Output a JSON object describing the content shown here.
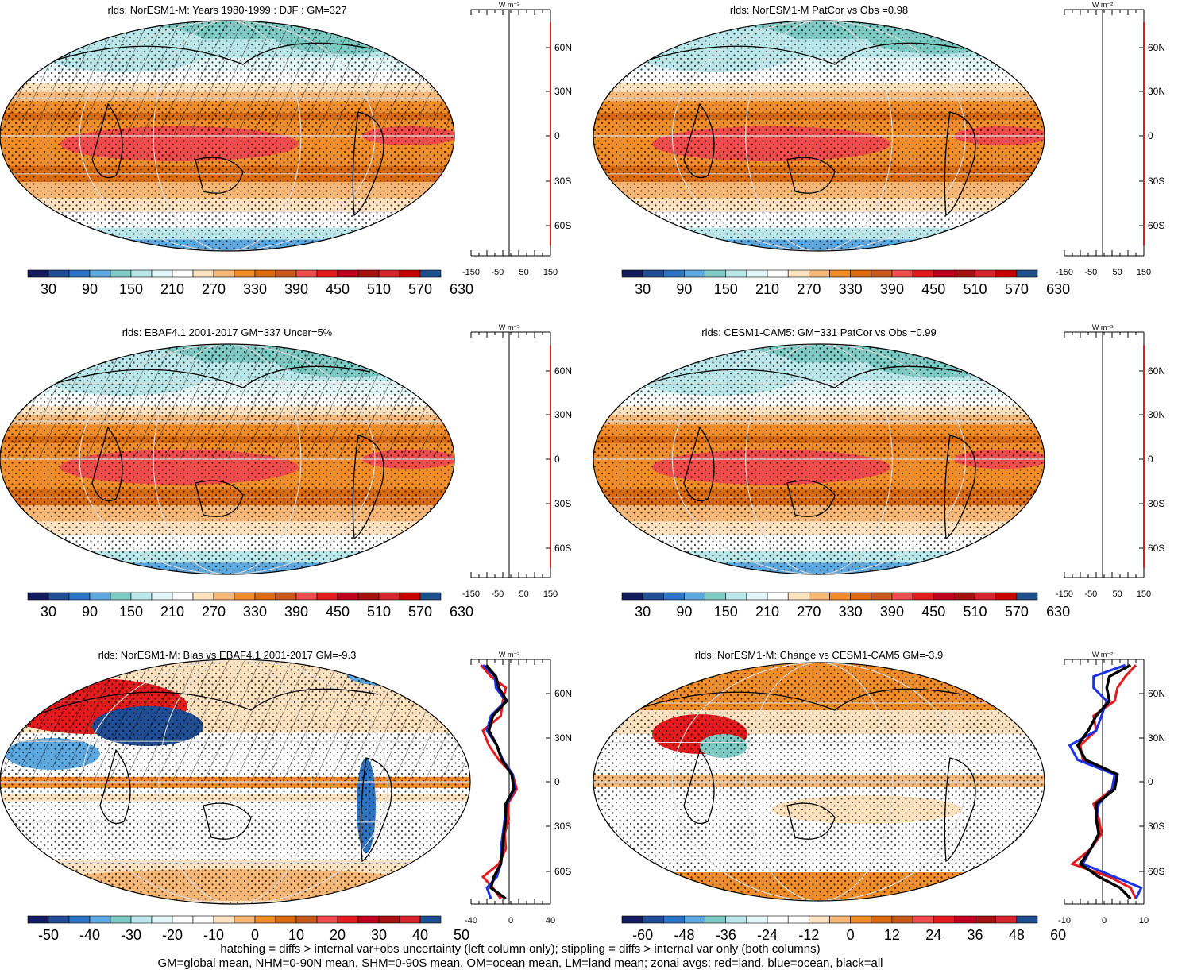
{
  "colors": {
    "fill_ramp": [
      "#141b5e",
      "#1f4e96",
      "#2e74c5",
      "#5ea8e0",
      "#7ecac4",
      "#b9e7ea",
      "#e4f7f8",
      "#ffffff",
      "#fde2c0",
      "#f7b877",
      "#ef8d2b",
      "#d96a10",
      "#c8591d",
      "#f04c4c",
      "#e41a1c",
      "#c0001e",
      "#a31111",
      "#d6262b",
      "#c80000",
      "#1d4f8c"
    ],
    "diff_ramp": [
      "#141b5e",
      "#1f4e96",
      "#2e74c5",
      "#5ea8e0",
      "#7ecac4",
      "#b9e7ea",
      "#e4f7f8",
      "#ffffff",
      "#ffffff",
      "#fde2c0",
      "#f7b877",
      "#ef8d2b",
      "#d96a10",
      "#c8591d",
      "#f04c4c",
      "#e41a1c",
      "#c0001e",
      "#a31111",
      "#d6262b",
      "#1d4f8c"
    ],
    "land_line": "#e41a1c",
    "ocean_line": "#1a33e6",
    "all_line": "#000000"
  },
  "panels": [
    {
      "title": "rlds: NorESM1-M: Years 1980-1999 : DJF : GM=327",
      "colorbar_labels": [
        "30",
        "90",
        "150",
        "210",
        "270",
        "330",
        "390",
        "450",
        "510",
        "570",
        "630"
      ],
      "zonal_xticks": [
        "-150",
        "-50",
        "50",
        "150"
      ],
      "zonal_yticks": [
        "60N",
        "30N",
        "0",
        "30S",
        "60S"
      ],
      "unit": "W m⁻²",
      "hatched": true
    },
    {
      "title": "rlds: NorESM1-M PatCor vs Obs =0.98",
      "colorbar_labels": [
        "30",
        "90",
        "150",
        "210",
        "270",
        "330",
        "390",
        "450",
        "510",
        "570",
        "630"
      ],
      "zonal_xticks": [
        "-150",
        "-50",
        "50",
        "150"
      ],
      "zonal_yticks": [
        "60N",
        "30N",
        "0",
        "30S",
        "60S"
      ],
      "unit": "W m⁻²",
      "hatched": false
    },
    {
      "title": "rlds: EBAF4.1 2001-2017 GM=337 Uncer=5%",
      "colorbar_labels": [
        "30",
        "90",
        "150",
        "210",
        "270",
        "330",
        "390",
        "450",
        "510",
        "570",
        "630"
      ],
      "zonal_xticks": [
        "-150",
        "-50",
        "50",
        "150"
      ],
      "zonal_yticks": [
        "60N",
        "30N",
        "0",
        "30S",
        "60S"
      ],
      "unit": "W m⁻²",
      "hatched": true
    },
    {
      "title": "rlds: CESM1-CAM5: GM=331 PatCor vs Obs =0.99",
      "colorbar_labels": [
        "30",
        "90",
        "150",
        "210",
        "270",
        "330",
        "390",
        "450",
        "510",
        "570",
        "630"
      ],
      "zonal_xticks": [
        "-150",
        "-50",
        "50",
        "150"
      ],
      "zonal_yticks": [
        "60N",
        "30N",
        "0",
        "30S",
        "60S"
      ],
      "unit": "W m⁻²",
      "hatched": false
    },
    {
      "title": "rlds: NorESM1-M: Bias vs EBAF4.1 2001-2017 GM=-9.3",
      "colorbar_labels": [
        "-50",
        "-40",
        "-30",
        "-20",
        "-10",
        "0",
        "10",
        "20",
        "30",
        "40",
        "50"
      ],
      "zonal_xticks": [
        "-40",
        "0",
        "40"
      ],
      "zonal_yticks": [
        "60N",
        "30N",
        "0",
        "30S",
        "60S"
      ],
      "unit": "W m⁻²",
      "hatched": true
    },
    {
      "title": "rlds: NorESM1-M: Change vs CESM1-CAM5 GM=-3.9",
      "colorbar_labels": [
        "-60",
        "-48",
        "-36",
        "-24",
        "-12",
        "0",
        "12",
        "24",
        "36",
        "48",
        "60"
      ],
      "zonal_xticks": [
        "-10",
        "0",
        "10"
      ],
      "zonal_yticks": [
        "60N",
        "30N",
        "0",
        "30S",
        "60S"
      ],
      "unit": "W m⁻²",
      "hatched": false
    }
  ],
  "footer": {
    "line1": "hatching = diffs > internal var+obs uncertainty (left column only); stippling = diffs > internal var only (both columns)",
    "line2": "GM=global mean, NHM=0-90N mean, SHM=0-90S mean, OM=ocean mean, LM=land mean; zonal avgs: red=land, blue=ocean, black=all"
  },
  "chart_data": [
    {
      "type": "heatmap",
      "title": "rlds: NorESM1-M: Years 1980-1999 : DJF : GM=327",
      "colorbar": [
        30,
        90,
        150,
        210,
        270,
        330,
        390,
        450,
        510,
        570,
        630
      ],
      "zonal_mean": {
        "lat": [
          80,
          60,
          30,
          0,
          -30,
          -60,
          -80
        ],
        "x": [
          150,
          150,
          150,
          150,
          150,
          150,
          150
        ],
        "xlim": [
          -150,
          150
        ]
      }
    },
    {
      "type": "heatmap",
      "title": "rlds: NorESM1-M PatCor vs Obs =0.98",
      "colorbar": [
        30,
        90,
        150,
        210,
        270,
        330,
        390,
        450,
        510,
        570,
        630
      ],
      "zonal_mean": {
        "lat": [
          80,
          60,
          30,
          0,
          -30,
          -60,
          -80
        ],
        "x": [
          150,
          150,
          150,
          150,
          150,
          150,
          150
        ],
        "xlim": [
          -150,
          150
        ]
      }
    },
    {
      "type": "heatmap",
      "title": "rlds: EBAF4.1 2001-2017 GM=337 Uncer=5%",
      "colorbar": [
        30,
        90,
        150,
        210,
        270,
        330,
        390,
        450,
        510,
        570,
        630
      ],
      "zonal_mean": {
        "lat": [
          80,
          60,
          30,
          0,
          -30,
          -60,
          -80
        ],
        "x": [
          150,
          150,
          150,
          150,
          150,
          150,
          150
        ],
        "xlim": [
          -150,
          150
        ]
      }
    },
    {
      "type": "heatmap",
      "title": "rlds: CESM1-CAM5: GM=331 PatCor vs Obs =0.99",
      "colorbar": [
        30,
        90,
        150,
        210,
        270,
        330,
        390,
        450,
        510,
        570,
        630
      ],
      "zonal_mean": {
        "lat": [
          80,
          60,
          30,
          0,
          -30,
          -60,
          -80
        ],
        "x": [
          150,
          150,
          150,
          150,
          150,
          150,
          150
        ],
        "xlim": [
          -150,
          150
        ]
      }
    },
    {
      "type": "heatmap",
      "title": "rlds: NorESM1-M: Bias vs EBAF4.1 2001-2017 GM=-9.3",
      "colorbar": [
        -50,
        -40,
        -30,
        -20,
        -10,
        0,
        10,
        20,
        30,
        40,
        50
      ],
      "zonal_mean": {
        "lat": [
          85,
          75,
          65,
          55,
          45,
          35,
          25,
          15,
          5,
          -5,
          -15,
          -25,
          -35,
          -45,
          -55,
          -65,
          -75,
          -85
        ],
        "xlim": [
          -40,
          40
        ],
        "series": [
          {
            "values": [
              -30,
              -20,
              -5,
              -8,
              -10,
              -28,
              -22,
              -12,
              2,
              6,
              -3,
              -2,
              -6,
              -5,
              -12,
              -28,
              -18,
              -10
            ]
          },
          {
            "values": [
              -28,
              -16,
              -15,
              -5,
              -20,
              -24,
              -14,
              -8,
              2,
              4,
              -4,
              -6,
              -8,
              -10,
              -10,
              -14,
              -24,
              -20
            ]
          },
          {
            "values": [
              -25,
              -15,
              -12,
              -4,
              -18,
              -22,
              -14,
              -9,
              1,
              3,
              -5,
              -5,
              -7,
              -8,
              -10,
              -17,
              -20,
              -5
            ]
          }
        ]
      }
    },
    {
      "type": "heatmap",
      "title": "rlds: NorESM1-M: Change vs CESM1-CAM5 GM=-3.9",
      "colorbar": [
        -60,
        -48,
        -36,
        -24,
        -12,
        0,
        12,
        24,
        36,
        48,
        60
      ],
      "zonal_mean": {
        "lat": [
          85,
          75,
          65,
          55,
          45,
          35,
          25,
          15,
          5,
          -5,
          -15,
          -25,
          -35,
          -45,
          -55,
          -65,
          -75,
          -85
        ],
        "xlim": [
          -15,
          15
        ],
        "series": [
          {
            "values": [
              12,
              8,
              5,
              4,
              -4,
              -3,
              -9,
              -8,
              4,
              3,
              -4,
              -2,
              -1,
              -5,
              -12,
              2,
              10,
              12
            ]
          },
          {
            "values": [
              8,
              -4,
              -4,
              1,
              -1,
              -3,
              -13,
              -10,
              4,
              3,
              -2,
              -3,
              -2,
              -5,
              -8,
              4,
              14,
              12
            ]
          },
          {
            "values": [
              10,
              2,
              1,
              2,
              -3,
              -6,
              -10,
              -7,
              5,
              4,
              -3,
              -3,
              -2,
              -5,
              -9,
              -2,
              6,
              10
            ]
          }
        ]
      }
    }
  ]
}
